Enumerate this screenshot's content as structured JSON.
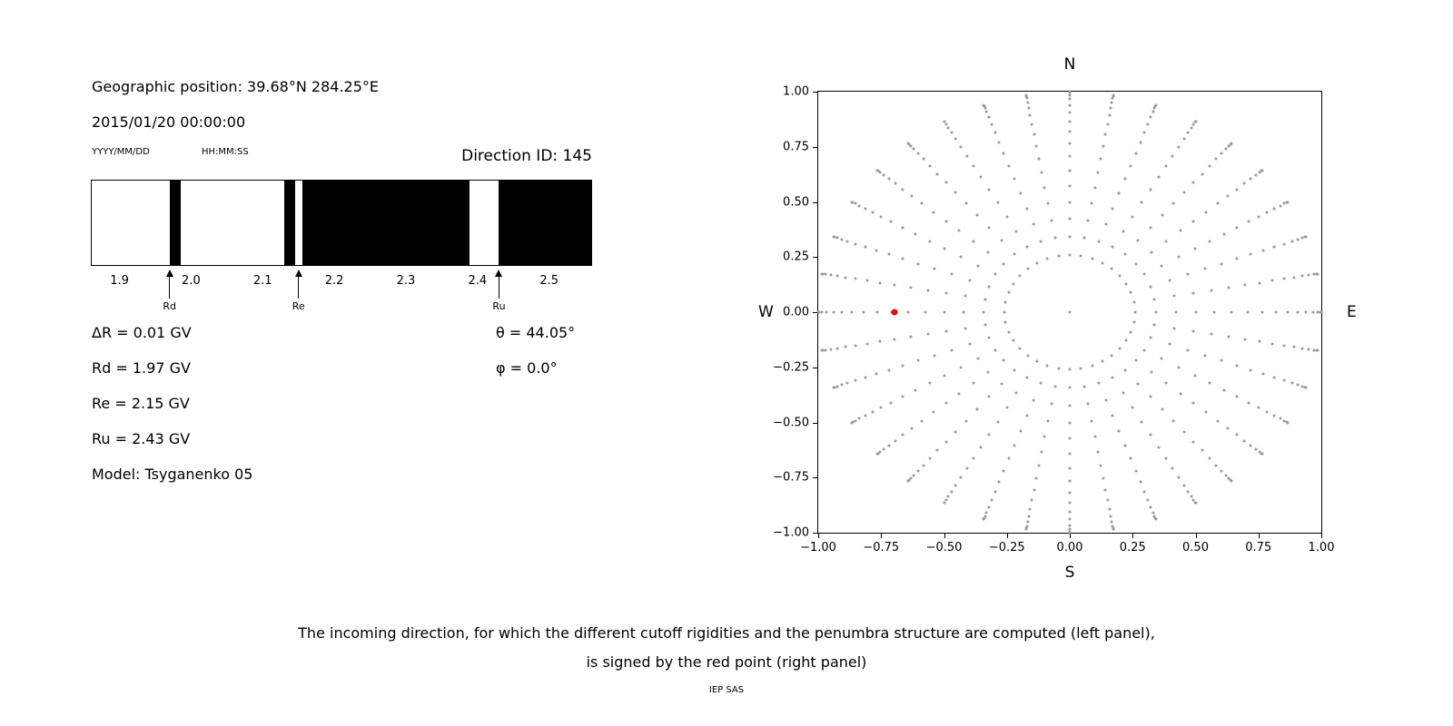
{
  "left_panel": {
    "geo_position": "Geographic position: 39.68°N 284.25°E",
    "datetime": "2015/01/20 00:00:00",
    "date_format_label": "YYYY/MM/DD",
    "time_format_label": "HH:MM:SS",
    "direction_id_label": "Direction ID: 145",
    "rigidity_lines": {
      "delta_r": "ΔR = 0.01 GV",
      "rd": "Rd = 1.97 GV",
      "re": "Re = 2.15 GV",
      "ru": "Ru = 2.43 GV",
      "model": "Model: Tsyganenko 05",
      "theta": "θ = 44.05°",
      "phi": "φ = 0.0°"
    }
  },
  "right_panel": {
    "compass": {
      "top": "N",
      "bottom": "S",
      "left": "W",
      "right": "E"
    }
  },
  "caption": {
    "line1": "The incoming direction, for which the different cutoff rigidities and the penumbra structure are computed (left panel),",
    "line2": "is signed by the red point (right panel)",
    "credit": "IEP SAS"
  },
  "colors": {
    "ink": "#000000",
    "dot_gray": "#999999",
    "point_red": "#ff0000",
    "allowed_black": "#000000"
  },
  "chart_data": [
    {
      "type": "bar",
      "name": "penumbra-structure-strip",
      "x_range": [
        1.86,
        2.56
      ],
      "x_ticks": [
        {
          "label": "1.9",
          "value": 1.9
        },
        {
          "label": "2.0",
          "value": 2.0
        },
        {
          "label": "2.1",
          "value": 2.1
        },
        {
          "label": "2.2",
          "value": 2.2
        },
        {
          "label": "2.3",
          "value": 2.3
        },
        {
          "label": "2.4",
          "value": 2.4
        },
        {
          "label": "2.5",
          "value": 2.5
        }
      ],
      "black_segments_GV": [
        [
          1.97,
          1.985
        ],
        [
          2.13,
          2.145
        ],
        [
          2.155,
          2.39
        ],
        [
          2.43,
          2.56
        ]
      ],
      "markers": [
        {
          "label": "Rd",
          "value": 1.97
        },
        {
          "label": "Re",
          "value": 2.15
        },
        {
          "label": "Ru",
          "value": 2.43
        }
      ],
      "values": {
        "delta_R_GV": 0.01,
        "Rd_GV": 1.97,
        "Re_GV": 2.15,
        "Ru_GV": 2.43,
        "model": "Tsyganenko 05"
      }
    },
    {
      "type": "scatter",
      "name": "incoming-direction-map",
      "xlim": [
        -1,
        1
      ],
      "ylim": [
        -1,
        1
      ],
      "x_ticks": [
        {
          "label": "−1.00",
          "value": -1.0
        },
        {
          "label": "−0.75",
          "value": -0.75
        },
        {
          "label": "−0.50",
          "value": -0.5
        },
        {
          "label": "−0.25",
          "value": -0.25
        },
        {
          "label": "0.00",
          "value": 0.0
        },
        {
          "label": "0.25",
          "value": 0.25
        },
        {
          "label": "0.50",
          "value": 0.5
        },
        {
          "label": "0.75",
          "value": 0.75
        },
        {
          "label": "1.00",
          "value": 1.0
        }
      ],
      "y_ticks": [
        {
          "label": "1.00",
          "value": 1.0
        },
        {
          "label": "0.75",
          "value": 0.75
        },
        {
          "label": "0.50",
          "value": 0.5
        },
        {
          "label": "0.25",
          "value": 0.25
        },
        {
          "label": "0.00",
          "value": 0.0
        },
        {
          "label": "−0.25",
          "value": -0.25
        },
        {
          "label": "−0.50",
          "value": -0.5
        },
        {
          "label": "−0.75",
          "value": -0.75
        },
        {
          "label": "−1.00",
          "value": -1.0
        }
      ],
      "compass_labels": {
        "top": "N",
        "bottom": "S",
        "left": "W",
        "right": "E"
      },
      "grid_points": {
        "description": "radial grid of candidate incoming directions; radius = sin(zenith), one spoke per azimuth",
        "azimuth_start_deg": 0,
        "azimuth_step_deg": 10,
        "azimuth_count": 36,
        "zenith_start_deg": 15,
        "zenith_step_deg": 5,
        "zenith_end_deg": 90,
        "radius_mapping": "sin(zenith)"
      },
      "center_point": [
        0,
        0
      ],
      "red_point": {
        "x": -0.695,
        "y": 0.0,
        "zenith_deg": 44.05,
        "azimuth_deg": 0.0,
        "color": "#ff0000"
      },
      "dot_color": "#999999",
      "legend": "none",
      "grid": "off"
    }
  ]
}
